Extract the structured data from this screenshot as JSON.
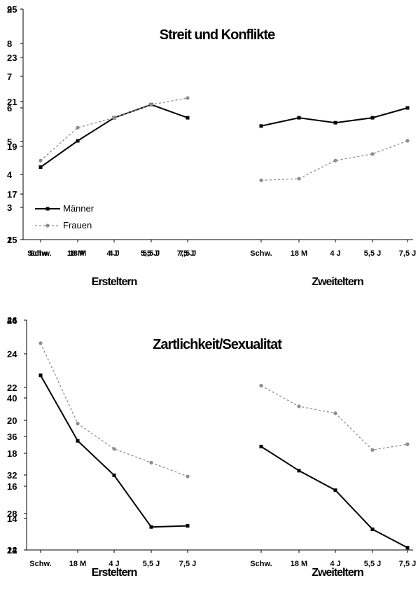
{
  "chart_data": [
    {
      "type": "line",
      "title": "Streit und Konflikte",
      "groups": [
        "Ersteltern",
        "Zweiteltern"
      ],
      "categories": [
        "Schw.",
        "18 M",
        "4 J",
        "5,5 J",
        "7,5 J"
      ],
      "xtick_overlay": [
        "Schw.",
        "18 M",
        "4 J",
        "5,5 J",
        "7,5 J"
      ],
      "yticks_left": [
        "25",
        "23",
        "21",
        "19",
        "17",
        "15"
      ],
      "yticks_right": [
        "9",
        "8",
        "7",
        "6",
        "5",
        "4",
        "3",
        "2"
      ],
      "ylim": [
        2,
        9
      ],
      "legend": {
        "placement": "bottom-left",
        "entries": [
          "Männer",
          "Frauen"
        ]
      },
      "series": [
        {
          "name": "Männer",
          "group": "Ersteltern",
          "values": [
            4.2,
            5.0,
            5.7,
            6.1,
            5.7
          ]
        },
        {
          "name": "Frauen",
          "group": "Ersteltern",
          "values": [
            4.4,
            5.4,
            5.7,
            6.1,
            6.3
          ]
        },
        {
          "name": "Männer",
          "group": "Zweiteltern",
          "values": [
            5.45,
            5.7,
            5.55,
            5.7,
            6.0
          ]
        },
        {
          "name": "Frauen",
          "group": "Zweiteltern",
          "values": [
            3.8,
            3.85,
            4.4,
            4.6,
            5.0
          ]
        }
      ]
    },
    {
      "type": "line",
      "title": "Zartlichkeit/Sexualitat",
      "groups": [
        "Ersteltern",
        "Zweiteltern"
      ],
      "categories": [
        "Schw.",
        "18 M",
        "4 J",
        "5,5 J",
        "7,5 J"
      ],
      "yticks_left": [
        "26",
        "24",
        "22",
        "20",
        "18",
        "16",
        "14",
        "12"
      ],
      "yticks_right": [
        "44",
        "40",
        "36",
        "32",
        "28",
        "24"
      ],
      "ylim": [
        24,
        44
      ],
      "series": [
        {
          "name": "Männer",
          "group": "Ersteltern",
          "values": [
            39.2,
            33.5,
            30.5,
            26.0,
            26.1
          ]
        },
        {
          "name": "Frauen",
          "group": "Ersteltern",
          "values": [
            42.0,
            35.0,
            32.8,
            31.6,
            30.4
          ]
        },
        {
          "name": "Männer",
          "group": "Zweiteltern",
          "values": [
            33.0,
            30.9,
            29.2,
            25.8,
            24.2
          ]
        },
        {
          "name": "Frauen",
          "group": "Zweiteltern",
          "values": [
            38.3,
            36.5,
            35.9,
            32.7,
            33.2
          ]
        }
      ]
    }
  ]
}
